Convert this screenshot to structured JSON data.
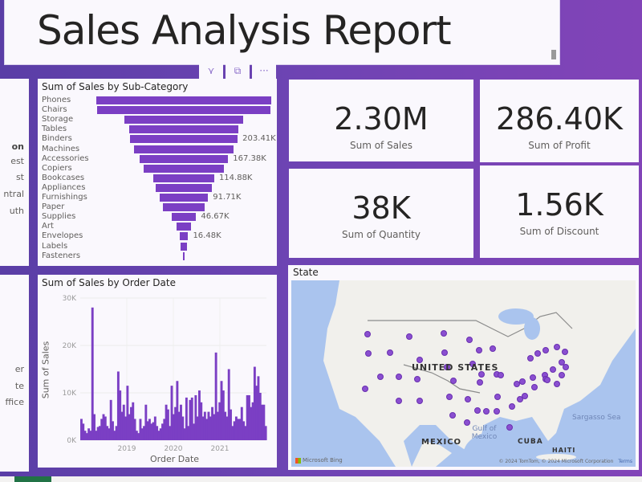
{
  "report": {
    "title": "Sales Analysis Report"
  },
  "visual_header_icons": [
    {
      "name": "filter-icon",
      "glyph": "⋎"
    },
    {
      "name": "focus-mode-icon",
      "glyph": "⧉"
    },
    {
      "name": "more-options-icon",
      "glyph": "···"
    }
  ],
  "region_slicer": {
    "header_partial": "on",
    "items_partial": [
      "est",
      "st",
      "ntral",
      "uth"
    ]
  },
  "segment_slicer": {
    "items_partial": [
      "er",
      "te",
      "ffice"
    ]
  },
  "kpis": [
    {
      "value": "2.30M",
      "label": "Sum of Sales"
    },
    {
      "value": "286.40K",
      "label": "Sum of Profit"
    },
    {
      "value": "38K",
      "label": "Sum of Quantity"
    },
    {
      "value": "1.56K",
      "label": "Sum of Discount"
    }
  ],
  "map": {
    "title": "State",
    "labels": {
      "country": "UNITED STATES",
      "mexico": "MEXICO",
      "cuba": "CUBA",
      "haiti": "HAITI",
      "gulf": "Gulf of Mexico",
      "sea": "Sargasso Sea"
    },
    "attribution": "© 2024 TomTom, © 2024 Microsoft Corporation",
    "terms": "Terms",
    "logo": "Microsoft Bing"
  },
  "colors": {
    "accent": "#7b3fc4",
    "background_start": "#5a3ea6",
    "background_end": "#8244b8",
    "card": "#faf8fd"
  },
  "chart_data": [
    {
      "type": "bar",
      "orientation": "funnel",
      "title": "Sum of Sales by Sub-Category",
      "categories": [
        "Phones",
        "Chairs",
        "Storage",
        "Tables",
        "Binders",
        "Machines",
        "Accessories",
        "Copiers",
        "Bookcases",
        "Appliances",
        "Furnishings",
        "Paper",
        "Supplies",
        "Art",
        "Envelopes",
        "Labels",
        "Fasteners"
      ],
      "values": [
        330000,
        328000,
        224000,
        207000,
        203410,
        189000,
        167380,
        150000,
        114880,
        107000,
        91710,
        78000,
        46670,
        27000,
        16480,
        12000,
        3000
      ],
      "data_labels": {
        "Binders": "203.41K",
        "Accessories": "167.38K",
        "Bookcases": "114.88K",
        "Furnishings": "91.71K",
        "Supplies": "46.67K",
        "Envelopes": "16.48K"
      }
    },
    {
      "type": "bar",
      "title": "Sum of Sales by Order Date",
      "xlabel": "Order Date",
      "ylabel": "Sum of Sales",
      "x_ticks": [
        "2019",
        "2020",
        "2021"
      ],
      "y_ticks": [
        "0K",
        "10K",
        "20K",
        "30K"
      ],
      "ylim": [
        0,
        30000
      ],
      "xlim": [
        "2018-01",
        "2021-12"
      ],
      "grid": true,
      "series": [
        {
          "name": "Sum of Sales",
          "values": [
            4500,
            3500,
            2000,
            1500,
            2500,
            2000,
            28000,
            5500,
            2000,
            2800,
            3000,
            4500,
            5500,
            5000,
            3000,
            2500,
            8500,
            4000,
            2000,
            3000,
            14500,
            10500,
            6000,
            7500,
            5000,
            11500,
            5500,
            7000,
            8000,
            4500,
            2000,
            1500,
            4500,
            2500,
            3000,
            7500,
            4000,
            4500,
            3500,
            3800,
            5000,
            3000,
            2000,
            2500,
            3500,
            4500,
            7500,
            6500,
            3000,
            11500,
            5500,
            7000,
            12500,
            6000,
            7500,
            5000,
            2500,
            9000,
            3000,
            8500,
            9000,
            3500,
            9500,
            5000,
            10500,
            8000,
            5000,
            6000,
            4500,
            6000,
            5000,
            7000,
            5500,
            18500,
            6000,
            8000,
            12500,
            10500,
            6000,
            5000,
            15000,
            6500,
            3000,
            4000,
            5000,
            4500,
            4500,
            7000,
            4000,
            3000,
            9500,
            9500,
            7000,
            8000,
            15500,
            11500,
            13500,
            10000,
            7500,
            7500,
            3000
          ]
        }
      ]
    }
  ]
}
